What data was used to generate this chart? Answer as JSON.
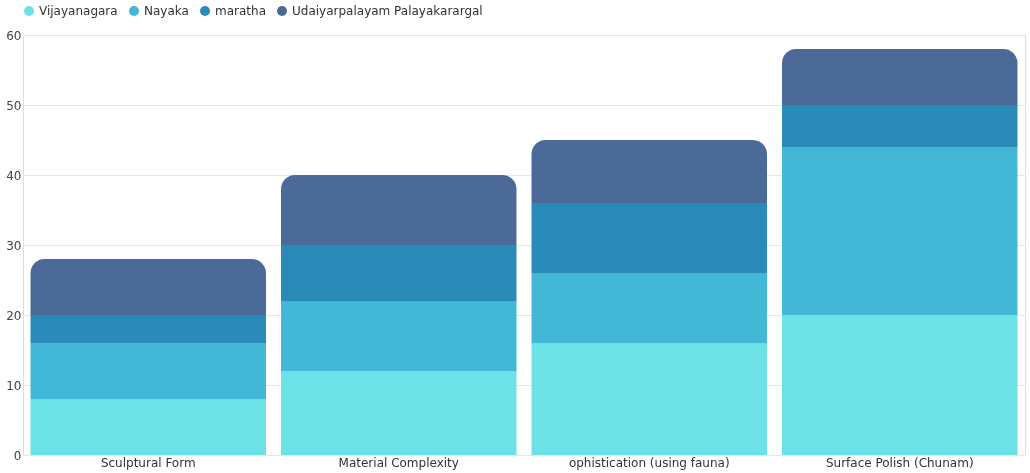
{
  "chart_data": {
    "type": "bar",
    "stacked": true,
    "categories": [
      "Sculptural Form",
      "Material Complexity",
      "ophistication (using fauna)",
      "Surface Polish (Chunam)"
    ],
    "series": [
      {
        "name": "Vijayanagara",
        "color": "#6ce1e6",
        "values": [
          8,
          12,
          16,
          20
        ]
      },
      {
        "name": "Nayaka",
        "color": "#42b8d6",
        "values": [
          8,
          10,
          10,
          24
        ]
      },
      {
        "name": "maratha",
        "color": "#2a8bb8",
        "values": [
          4,
          8,
          10,
          6
        ]
      },
      {
        "name": "Udaiyarpalayam Palayakarargal",
        "color": "#4b6a98",
        "values": [
          8,
          10,
          9,
          8
        ]
      }
    ],
    "ylim": [
      0,
      60
    ],
    "yticks": [
      0,
      10,
      20,
      30,
      40,
      50,
      60
    ],
    "grid": "y",
    "legend": "top"
  }
}
